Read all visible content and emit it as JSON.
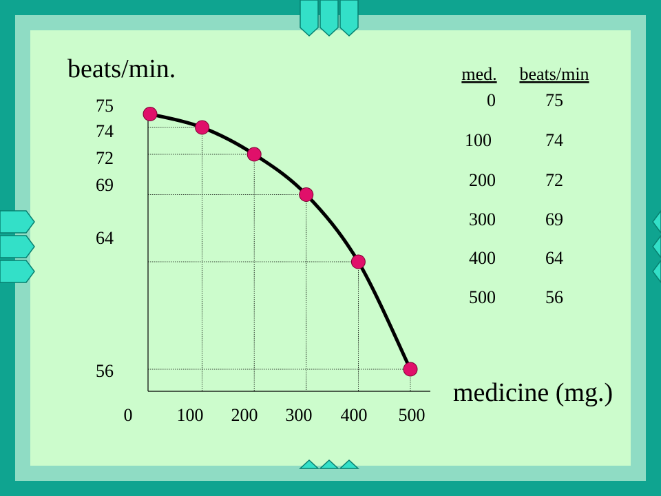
{
  "colors": {
    "frame": "#0fa490",
    "inner_frame": "#8fdcc4",
    "panel": "#ccfccc",
    "tab_light": "#33e0c8",
    "tab_dark": "#078070",
    "curve": "#000000",
    "point": "#e0106a"
  },
  "chart_data": {
    "type": "line",
    "ylabel": "beats/min.",
    "xlabel": "medicine (mg.)",
    "x": [
      0,
      100,
      200,
      300,
      400,
      500
    ],
    "y": [
      75,
      74,
      72,
      69,
      64,
      56
    ],
    "xticks": [
      "0",
      "100",
      "200",
      "300",
      "400",
      "500"
    ],
    "yticks": [
      "75",
      "74",
      "72",
      "69",
      "64",
      "56"
    ],
    "grid": "drop-lines",
    "legend": "none"
  },
  "table": {
    "headers": [
      "med.",
      "beats/min"
    ],
    "rows": [
      [
        "0",
        "75"
      ],
      [
        "100",
        "74"
      ],
      [
        "200",
        "72"
      ],
      [
        "300",
        "69"
      ],
      [
        "400",
        "64"
      ],
      [
        "500",
        "56"
      ]
    ]
  }
}
